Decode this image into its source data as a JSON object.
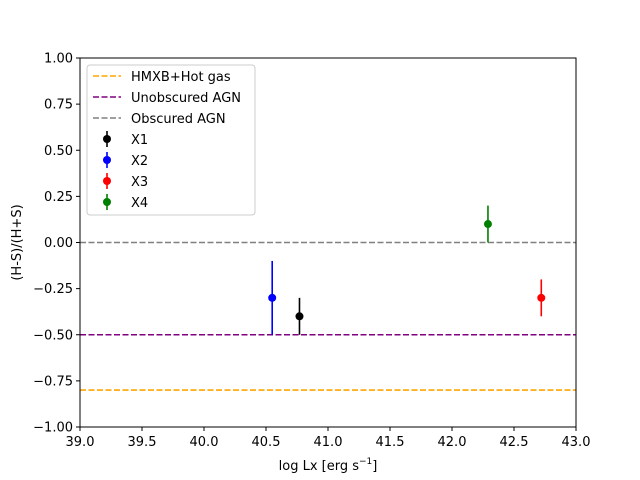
{
  "chart_data": {
    "type": "scatter",
    "xlabel": "log Lx [erg s",
    "xlabel_sup": "−1",
    "xlabel_close": "]",
    "ylabel": "(H-S)/(H+S)",
    "xlim": [
      39.0,
      43.0
    ],
    "ylim": [
      -1.0,
      1.0
    ],
    "xticks": [
      "39.0",
      "39.5",
      "40.0",
      "40.5",
      "41.0",
      "41.5",
      "42.0",
      "42.5",
      "43.0"
    ],
    "yticks": [
      "−1.00",
      "−0.75",
      "−0.50",
      "−0.25",
      "0.00",
      "0.25",
      "0.50",
      "0.75",
      "1.00"
    ],
    "grid": false,
    "legend_position": "upper-left",
    "reference_lines": [
      {
        "name": "HMXB+Hot gas",
        "y": -0.8,
        "color": "#ffa500",
        "style": "dashed"
      },
      {
        "name": "Unobscured AGN",
        "y": -0.5,
        "color": "#800080",
        "style": "dashed"
      },
      {
        "name": "Obscured AGN",
        "y": 0.0,
        "color": "#808080",
        "style": "dashed"
      }
    ],
    "series": [
      {
        "name": "X1",
        "color": "#000000",
        "x": 40.77,
        "y": -0.4,
        "yerr_low": 0.1,
        "yerr_high": 0.1
      },
      {
        "name": "X2",
        "color": "#0000ff",
        "x": 40.55,
        "y": -0.3,
        "yerr_low": 0.2,
        "yerr_high": 0.2
      },
      {
        "name": "X3",
        "color": "#ff0000",
        "x": 42.72,
        "y": -0.3,
        "yerr_low": 0.1,
        "yerr_high": 0.1
      },
      {
        "name": "X4",
        "color": "#008000",
        "x": 42.29,
        "y": 0.1,
        "yerr_low": 0.1,
        "yerr_high": 0.1
      }
    ]
  }
}
